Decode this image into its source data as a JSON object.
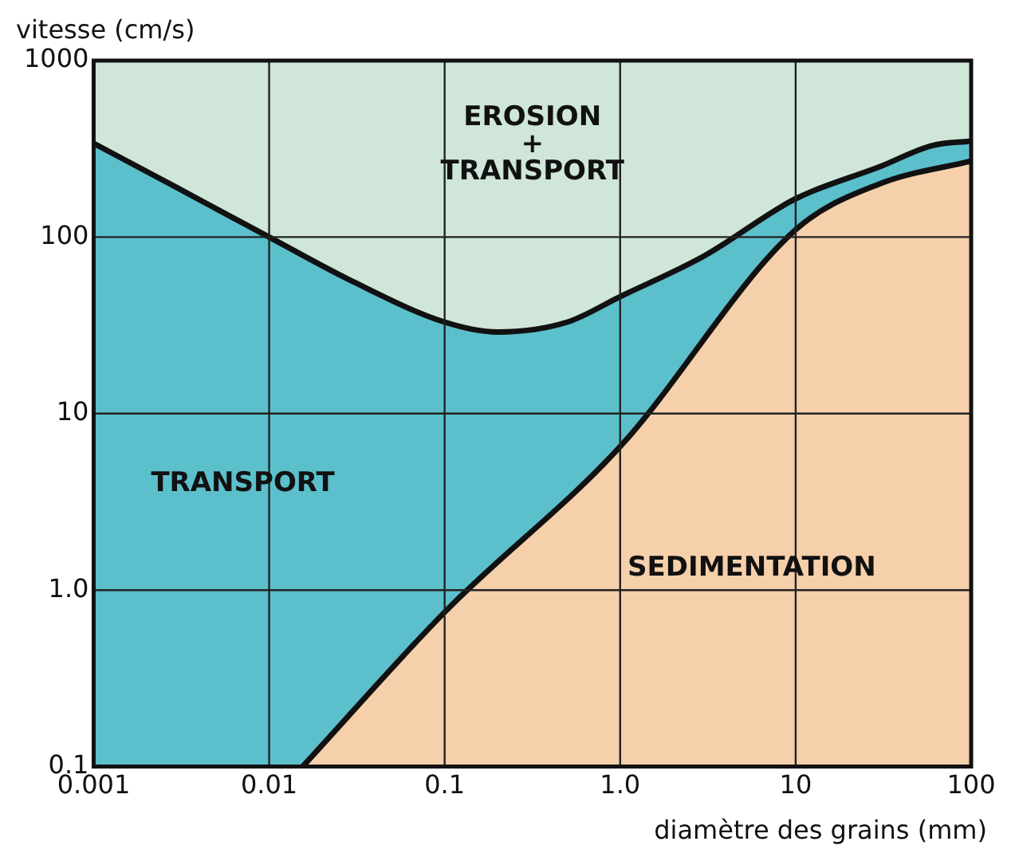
{
  "chart_data": {
    "type": "area",
    "ylabel": "vitesse (cm/s)",
    "xlabel": "diamètre des grains (mm)",
    "log": "xy",
    "grid": true,
    "marker": "none",
    "legend": false,
    "xlim": [
      0.001,
      100
    ],
    "xticks": [
      0.001,
      0.01,
      0.1,
      {
        "value": 1,
        "label": "1.0"
      },
      10,
      100
    ],
    "ylim": [
      0.1,
      1000
    ],
    "yticks": [
      0.1,
      {
        "value": 1,
        "label": "1.0"
      },
      10,
      100,
      1000
    ],
    "bands": [
      {
        "axis": "y",
        "from": 0.1,
        "to": 1000,
        "color": "#cfe6d8"
      }
    ],
    "series": [
      {
        "color": "#5cbfcc",
        "x": [
          0.001,
          0.003,
          0.01,
          0.03,
          0.1,
          0.2,
          0.5,
          1,
          3,
          10,
          30,
          60,
          100
        ],
        "values": [
          340,
          190,
          100,
          56,
          33,
          29,
          33,
          46,
          78,
          165,
          250,
          330,
          350
        ]
      },
      {
        "color": "#f5d0aa",
        "x": [
          0.0155,
          0.1,
          1,
          10,
          30,
          100
        ],
        "values": [
          0.1,
          0.75,
          6.5,
          110,
          200,
          270
        ]
      }
    ],
    "annotations": [
      "EROSION\n+\nTRANSPORT",
      "TRANSPORT",
      "SEDIMENTATION"
    ]
  }
}
